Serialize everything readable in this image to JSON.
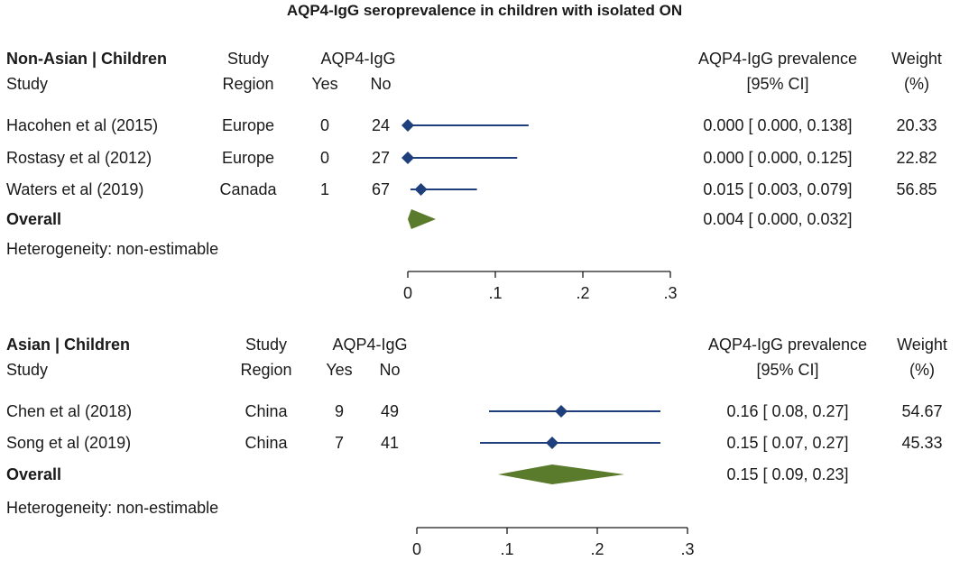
{
  "chart_data": {
    "type": "forest",
    "title": "AQP4-IgG seroprevalence in children with isolated ON",
    "colors": {
      "marker": "#1f3e7c",
      "overall": "#5a7a2c",
      "axis": "#1a1a1a",
      "text": "#1a1a1a"
    },
    "panels": [
      {
        "group_label": "Non-Asian | Children",
        "headers": {
          "study": "Study",
          "region_top": "Study",
          "region_bottom": "Region",
          "aqp_top": "AQP4-IgG",
          "yes": "Yes",
          "no": "No",
          "prev_top": "AQP4-IgG prevalence",
          "prev_bottom": "[95% CI]",
          "weight_top": "Weight",
          "weight_bottom": "(%)"
        },
        "studies": [
          {
            "name": "Hacohen et al (2015)",
            "region": "Europe",
            "yes": "0",
            "no": "24",
            "est": 0.0,
            "lo": 0.0,
            "hi": 0.138,
            "ci_text": "0.000 [ 0.000,  0.138]",
            "weight": "20.33"
          },
          {
            "name": "Rostasy et al (2012)",
            "region": "Europe",
            "yes": "0",
            "no": "27",
            "est": 0.0,
            "lo": 0.0,
            "hi": 0.125,
            "ci_text": "0.000 [ 0.000,  0.125]",
            "weight": "22.82"
          },
          {
            "name": "Waters et al (2019)",
            "region": "Canada",
            "yes": "1",
            "no": "67",
            "est": 0.015,
            "lo": 0.003,
            "hi": 0.079,
            "ci_text": "0.015 [ 0.003,  0.079]",
            "weight": "56.85"
          }
        ],
        "overall": {
          "label": "Overall",
          "est": 0.004,
          "lo": 0.0,
          "hi": 0.032,
          "ci_text": "0.004 [ 0.000,  0.032]"
        },
        "heterogeneity": "Heterogeneity: non-estimable",
        "xaxis": {
          "min": 0,
          "max": 0.3,
          "ticks": [
            0,
            0.1,
            0.2,
            0.3
          ],
          "tick_labels": [
            "0",
            ".1",
            ".2",
            ".3"
          ]
        }
      },
      {
        "group_label": "Asian | Children",
        "headers": {
          "study": "Study",
          "region_top": "Study",
          "region_bottom": "Region",
          "aqp_top": "AQP4-IgG",
          "yes": "Yes",
          "no": "No",
          "prev_top": "AQP4-IgG prevalence",
          "prev_bottom": "[95% CI]",
          "weight_top": "Weight",
          "weight_bottom": "(%)"
        },
        "studies": [
          {
            "name": "Chen et al (2018)",
            "region": "China",
            "yes": "9",
            "no": "49",
            "est": 0.16,
            "lo": 0.08,
            "hi": 0.27,
            "ci_text": "0.16 [ 0.08,  0.27]",
            "weight": "54.67"
          },
          {
            "name": "Song et al (2019)",
            "region": "China",
            "yes": "7",
            "no": "41",
            "est": 0.15,
            "lo": 0.07,
            "hi": 0.27,
            "ci_text": "0.15 [ 0.07,  0.27]",
            "weight": "45.33"
          }
        ],
        "overall": {
          "label": "Overall",
          "est": 0.15,
          "lo": 0.09,
          "hi": 0.23,
          "ci_text": "0.15 [ 0.09,  0.23]"
        },
        "heterogeneity": "Heterogeneity: non-estimable",
        "xaxis": {
          "min": 0,
          "max": 0.3,
          "ticks": [
            0,
            0.1,
            0.2,
            0.3
          ],
          "tick_labels": [
            "0",
            ".1",
            ".2",
            ".3"
          ]
        }
      }
    ]
  }
}
